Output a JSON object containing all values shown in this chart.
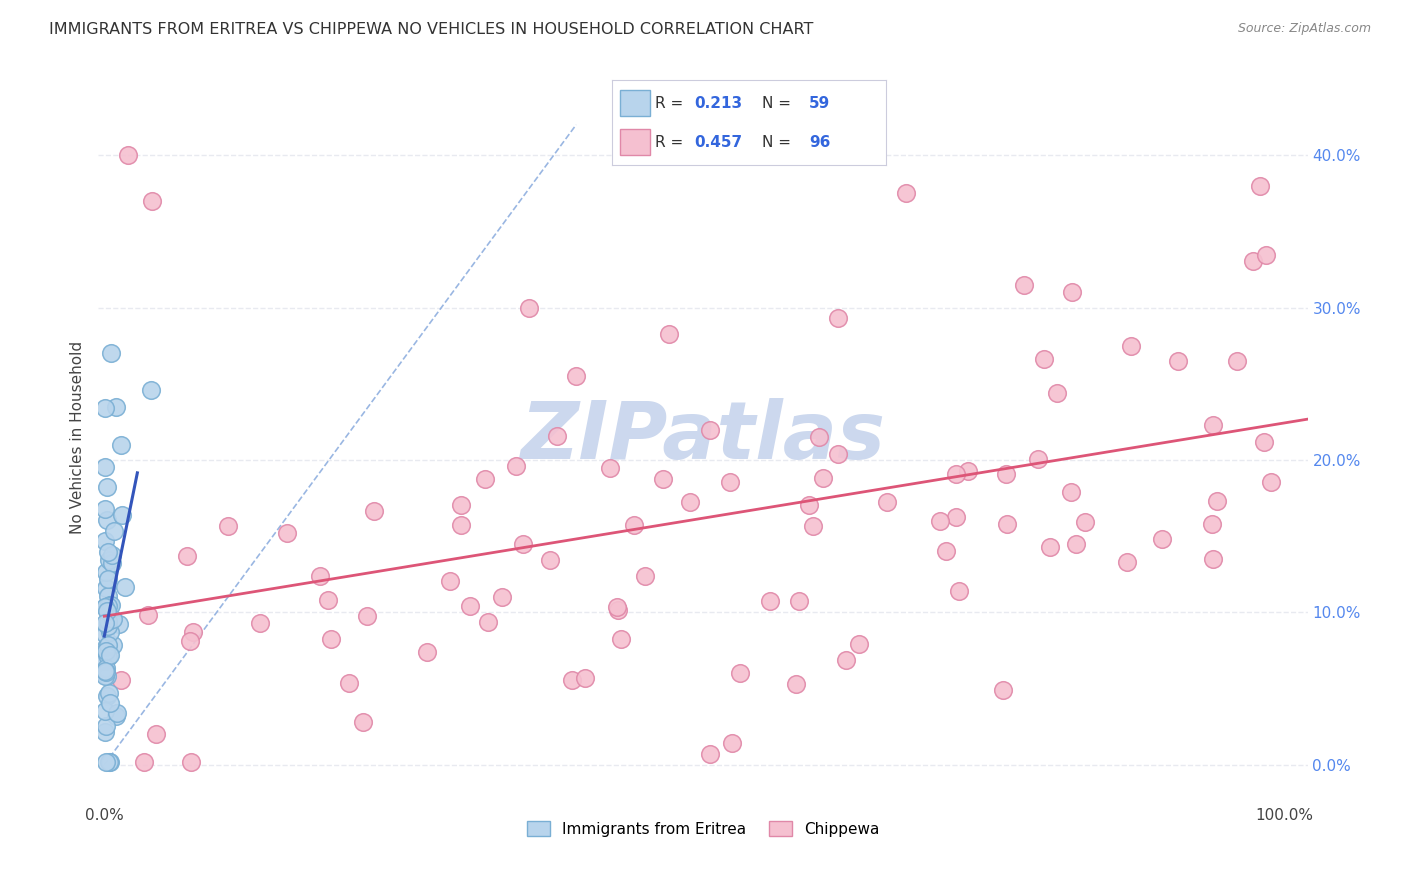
{
  "title": "IMMIGRANTS FROM ERITREA VS CHIPPEWA NO VEHICLES IN HOUSEHOLD CORRELATION CHART",
  "source": "Source: ZipAtlas.com",
  "ylabel": "No Vehicles in Household",
  "yticks": [
    "0.0%",
    "10.0%",
    "20.0%",
    "30.0%",
    "40.0%"
  ],
  "ytick_vals": [
    0.0,
    0.1,
    0.2,
    0.3,
    0.4
  ],
  "xlim": [
    -0.005,
    1.02
  ],
  "ylim": [
    -0.025,
    0.455
  ],
  "legend_r1": "0.213",
  "legend_n1": "59",
  "legend_r2": "0.457",
  "legend_n2": "96",
  "blue_color": "#7aafd4",
  "blue_face": "#b8d4ec",
  "pink_color": "#e088a8",
  "pink_face": "#f5c0d0",
  "blue_line_color": "#3355bb",
  "pink_line_color": "#dd5577",
  "dashed_line_color": "#88aadd",
  "watermark_color": "#ccd8ee",
  "background_color": "#ffffff",
  "grid_color": "#e8eaf0",
  "title_fontsize": 11.5,
  "source_fontsize": 9
}
